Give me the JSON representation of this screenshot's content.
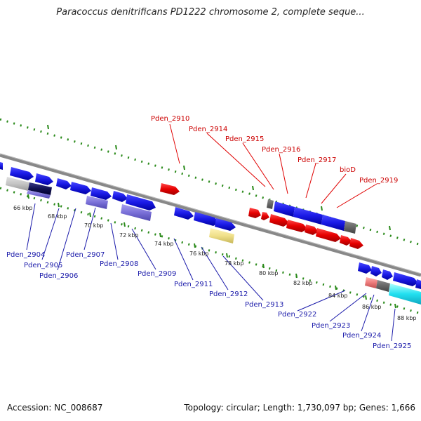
{
  "title": "Paracoccus denitrificans PD1222 chromosome 2, complete seque...",
  "footer": {
    "accession": "Accession: NC_008687",
    "summary": "Topology: circular; Length: 1,730,097 bp; Genes: 1,666"
  },
  "ticks": [
    "66 kbp",
    "68 kbp",
    "70 kbp",
    "72 kbp",
    "74 kbp",
    "76 kbp",
    "78 kbp",
    "80 kbp",
    "82 kbp",
    "84 kbp",
    "86 kbp",
    "88 kbp"
  ],
  "genes_top": [
    "Pden_2910",
    "Pden_2914",
    "Pden_2915",
    "Pden_2916",
    "Pden_2917",
    "bioD",
    "Pden_2919"
  ],
  "genes_bottom": [
    "Pden_2904",
    "Pden_2905",
    "Pden_2906",
    "Pden_2907",
    "Pden_2908",
    "Pden_2909",
    "Pden_2911",
    "Pden_2912",
    "Pden_2913",
    "Pden_2922",
    "Pden_2923",
    "Pden_2924",
    "Pden_2925"
  ],
  "colors": {
    "forward": "#1a1ae6",
    "reverse": "#e60000",
    "dots": "#2a8a1a",
    "backbone": "#888888",
    "top_label": "#cc0000",
    "bottom_label": "#1a1aaa"
  }
}
